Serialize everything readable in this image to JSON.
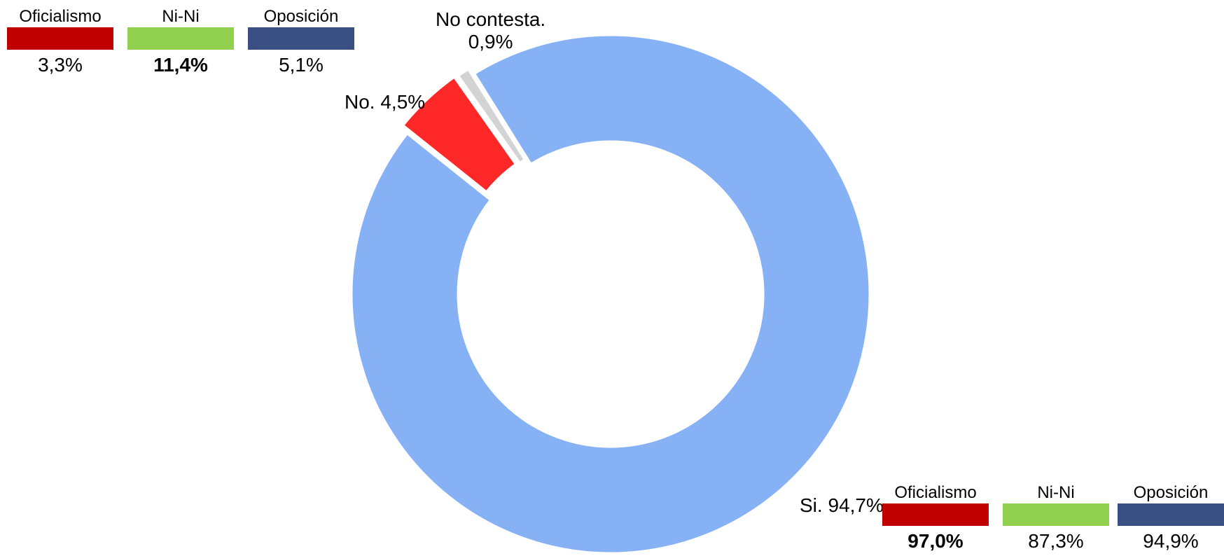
{
  "chart_data": {
    "type": "pie",
    "style": "donut",
    "slices": [
      {
        "label": "Si. 94,7%",
        "value": 94.7,
        "color": "#86B2F5"
      },
      {
        "label": "No. 4,5%",
        "value": 4.5,
        "color": "#FF2828"
      },
      {
        "label": "No contesta. 0,9%",
        "label_line1": "No contesta.",
        "label_line2": "0,9%",
        "value": 0.9,
        "color": "#D3D3D3"
      }
    ]
  },
  "legend_top": {
    "items": [
      {
        "name": "Oficialismo",
        "value": "3,3%",
        "color": "#C00000",
        "bold": false
      },
      {
        "name": "Ni-Ni",
        "value": "11,4%",
        "color": "#92D050",
        "bold": true
      },
      {
        "name": "Oposición",
        "value": "5,1%",
        "color": "#3A5083",
        "bold": false
      }
    ]
  },
  "legend_bottom": {
    "items": [
      {
        "name": "Oficialismo",
        "value": "97,0%",
        "color": "#C00000",
        "bold": true
      },
      {
        "name": "Ni-Ni",
        "value": "87,3%",
        "color": "#92D050",
        "bold": false
      },
      {
        "name": "Oposición",
        "value": "94,9%",
        "color": "#3A5083",
        "bold": false
      }
    ]
  }
}
